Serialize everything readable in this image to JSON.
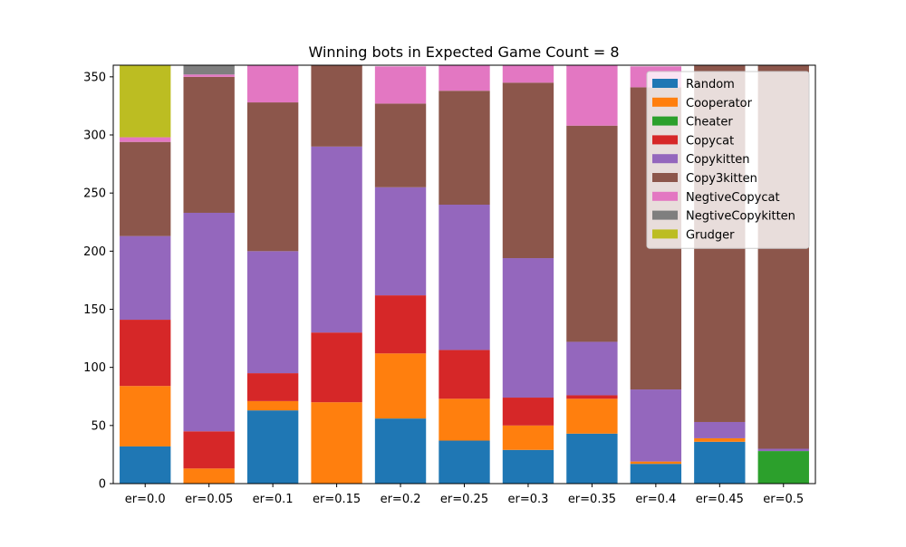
{
  "chart_data": {
    "type": "bar",
    "stacked": true,
    "title": "Winning bots in Expected Game Count = 8",
    "xlabel": "",
    "ylabel": "",
    "categories": [
      "er=0.0",
      "er=0.05",
      "er=0.1",
      "er=0.15",
      "er=0.2",
      "er=0.25",
      "er=0.3",
      "er=0.35",
      "er=0.4",
      "er=0.45",
      "er=0.5"
    ],
    "ylim": [
      0,
      360
    ],
    "yticks": [
      0,
      50,
      100,
      150,
      200,
      250,
      300,
      350
    ],
    "grid": false,
    "legend_position": "top-right",
    "series": [
      {
        "name": "Random",
        "color": "#1f77b4",
        "values": [
          32,
          0,
          63,
          0,
          56,
          37,
          29,
          43,
          17,
          36,
          0
        ]
      },
      {
        "name": "Cooperator",
        "color": "#ff7f0e",
        "values": [
          52,
          13,
          8,
          70,
          56,
          36,
          21,
          30,
          2,
          3,
          0
        ]
      },
      {
        "name": "Cheater",
        "color": "#2ca02c",
        "values": [
          0,
          0,
          0,
          0,
          0,
          0,
          0,
          0,
          0,
          0,
          28
        ]
      },
      {
        "name": "Copycat",
        "color": "#d62728",
        "values": [
          57,
          32,
          24,
          60,
          50,
          42,
          24,
          3,
          0,
          0,
          0
        ]
      },
      {
        "name": "Copykitten",
        "color": "#9467bd",
        "values": [
          72,
          188,
          105,
          160,
          93,
          125,
          120,
          46,
          62,
          14,
          2
        ]
      },
      {
        "name": "Copy3kitten",
        "color": "#8c564b",
        "values": [
          81,
          117,
          128,
          71,
          72,
          98,
          151,
          186,
          260,
          307,
          330
        ]
      },
      {
        "name": "NegtiveCopycat",
        "color": "#e377c2",
        "values": [
          4,
          2,
          32,
          0,
          32,
          22,
          15,
          52,
          18,
          0,
          0
        ]
      },
      {
        "name": "NegtiveCopykitten",
        "color": "#7f7f7f",
        "values": [
          0,
          8,
          0,
          0,
          0,
          0,
          0,
          0,
          0,
          0,
          0
        ]
      },
      {
        "name": "Grudger",
        "color": "#bcbd22",
        "values": [
          62,
          0,
          0,
          0,
          0,
          0,
          0,
          0,
          0,
          0,
          0
        ]
      }
    ]
  }
}
